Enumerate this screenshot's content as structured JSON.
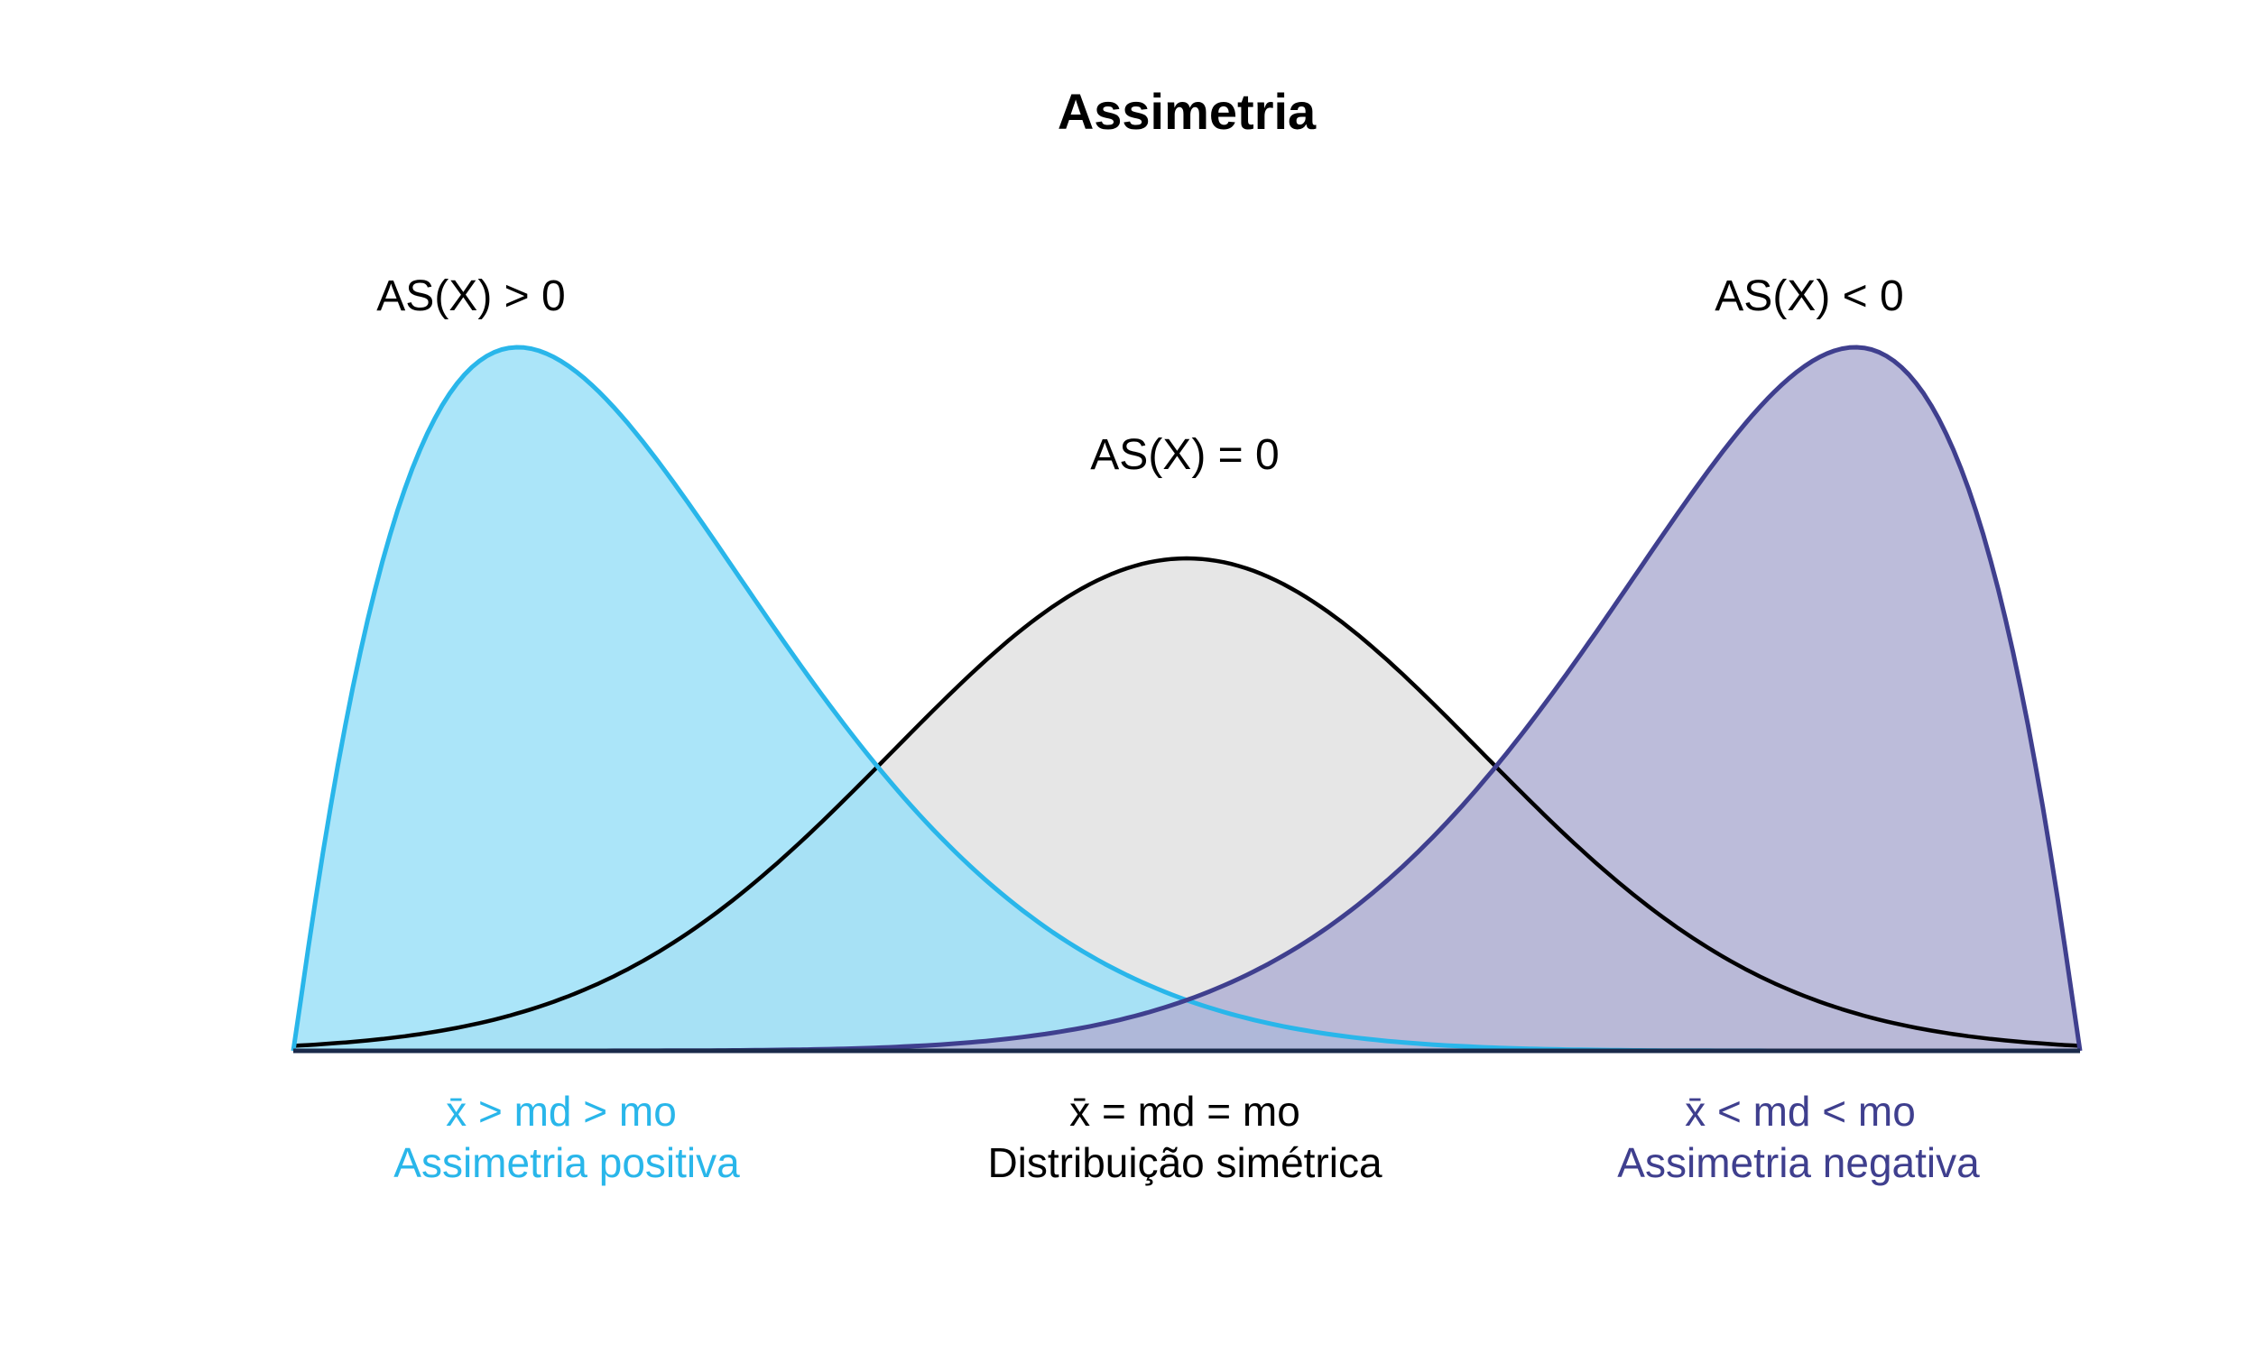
{
  "title": "Assimetria",
  "colors": {
    "positive": "#29b6ea",
    "positive_fill": "#99dff8",
    "symmetric": "#000000",
    "symmetric_fill": "#e6e6e6",
    "negative": "#3f3f8e",
    "negative_fill": "#b0b0d4",
    "baseline": "#1a2a4a"
  },
  "chart_data": {
    "type": "area",
    "title": "Assimetria",
    "xlabel": "",
    "ylabel": "",
    "grid": false,
    "axes_visible": false,
    "curves": [
      {
        "id": "positive",
        "formula_label": "AS(X) > 0",
        "relation": "x̄ >  md > mo",
        "caption": "Assimetria positiva",
        "shape": "right-skewed",
        "peak_position": 0.125,
        "relative_height": 1.0
      },
      {
        "id": "symmetric",
        "formula_label": "AS(X) = 0",
        "relation": "x̄ =  md = mo",
        "caption": "Distribuição simétrica",
        "shape": "symmetric",
        "peak_position": 0.5,
        "relative_height": 0.7
      },
      {
        "id": "negative",
        "formula_label": "AS(X) < 0",
        "relation": "x̄ <  md < mo",
        "caption": "Assimetria negativa",
        "shape": "left-skewed",
        "peak_position": 0.875,
        "relative_height": 1.0
      }
    ]
  }
}
